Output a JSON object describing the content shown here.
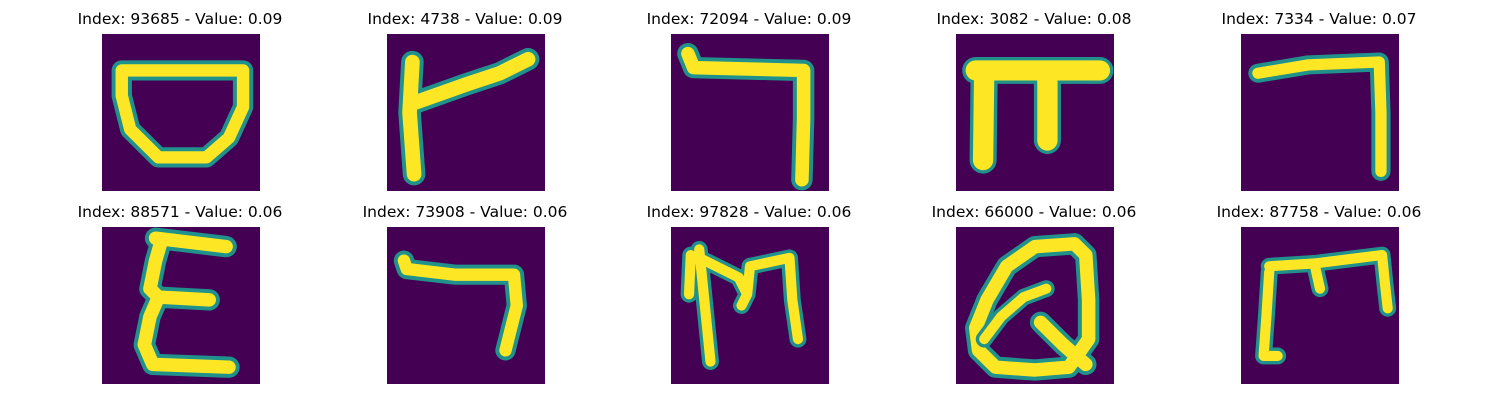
{
  "figure": {
    "background": "#ffffff",
    "colormap": "viridis",
    "colors": {
      "low": "#440154",
      "mid": "#21918c",
      "high": "#fde725"
    }
  },
  "panels": [
    {
      "title": "Index: 93685 - Value: 0.09",
      "index": 93685,
      "value": 0.09,
      "glyph": "bowl"
    },
    {
      "title": "Index: 4738 - Value: 0.09",
      "index": 4738,
      "value": 0.09,
      "glyph": "flag"
    },
    {
      "title": "Index: 72094 - Value: 0.09",
      "index": 72094,
      "value": 0.09,
      "glyph": "hook-right"
    },
    {
      "title": "Index: 3082 - Value: 0.08",
      "index": 3082,
      "value": 0.08,
      "glyph": "pi"
    },
    {
      "title": "Index: 7334 - Value: 0.07",
      "index": 7334,
      "value": 0.07,
      "glyph": "seven-thin"
    },
    {
      "title": "Index: 88571 - Value: 0.06",
      "index": 88571,
      "value": 0.06,
      "glyph": "sigma"
    },
    {
      "title": "Index: 73908 - Value: 0.06",
      "index": 73908,
      "value": 0.06,
      "glyph": "hook-short"
    },
    {
      "title": "Index: 97828 - Value: 0.06",
      "index": 97828,
      "value": 0.06,
      "glyph": "m-shape"
    },
    {
      "title": "Index: 66000 - Value: 0.06",
      "index": 66000,
      "value": 0.06,
      "glyph": "loop"
    },
    {
      "title": "Index: 87758 - Value: 0.06",
      "index": 87758,
      "value": 0.06,
      "glyph": "gate"
    }
  ]
}
